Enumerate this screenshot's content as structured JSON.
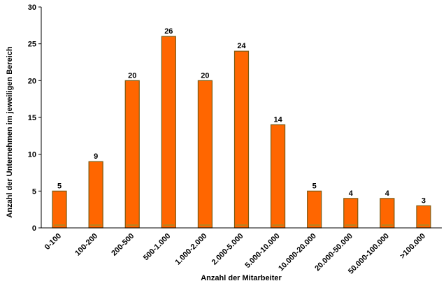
{
  "chart_data": {
    "type": "bar",
    "title": "",
    "xlabel": "Anzahl der Mitarbeiter",
    "ylabel": "Anzahl der Unternehmen im jeweiligen Bereich",
    "categories": [
      "0-100",
      "100-200",
      "200-500",
      "500-1.000",
      "1.000-2.000",
      "2.000-5.000",
      "5.000-10.000",
      "10.000-20.000",
      "20.000-50.000",
      "50.000-100.000",
      ">100.000"
    ],
    "values": [
      5,
      9,
      20,
      26,
      20,
      24,
      14,
      5,
      4,
      4,
      3
    ],
    "ylim": [
      0,
      30
    ],
    "yticks": [
      0,
      5,
      10,
      15,
      20,
      25,
      30
    ],
    "grid": false,
    "legend": "none",
    "colors": {
      "bar_fill": "#FF6600",
      "bar_border": "#7A5A12",
      "bar_inner_line": "#6FA040"
    }
  }
}
